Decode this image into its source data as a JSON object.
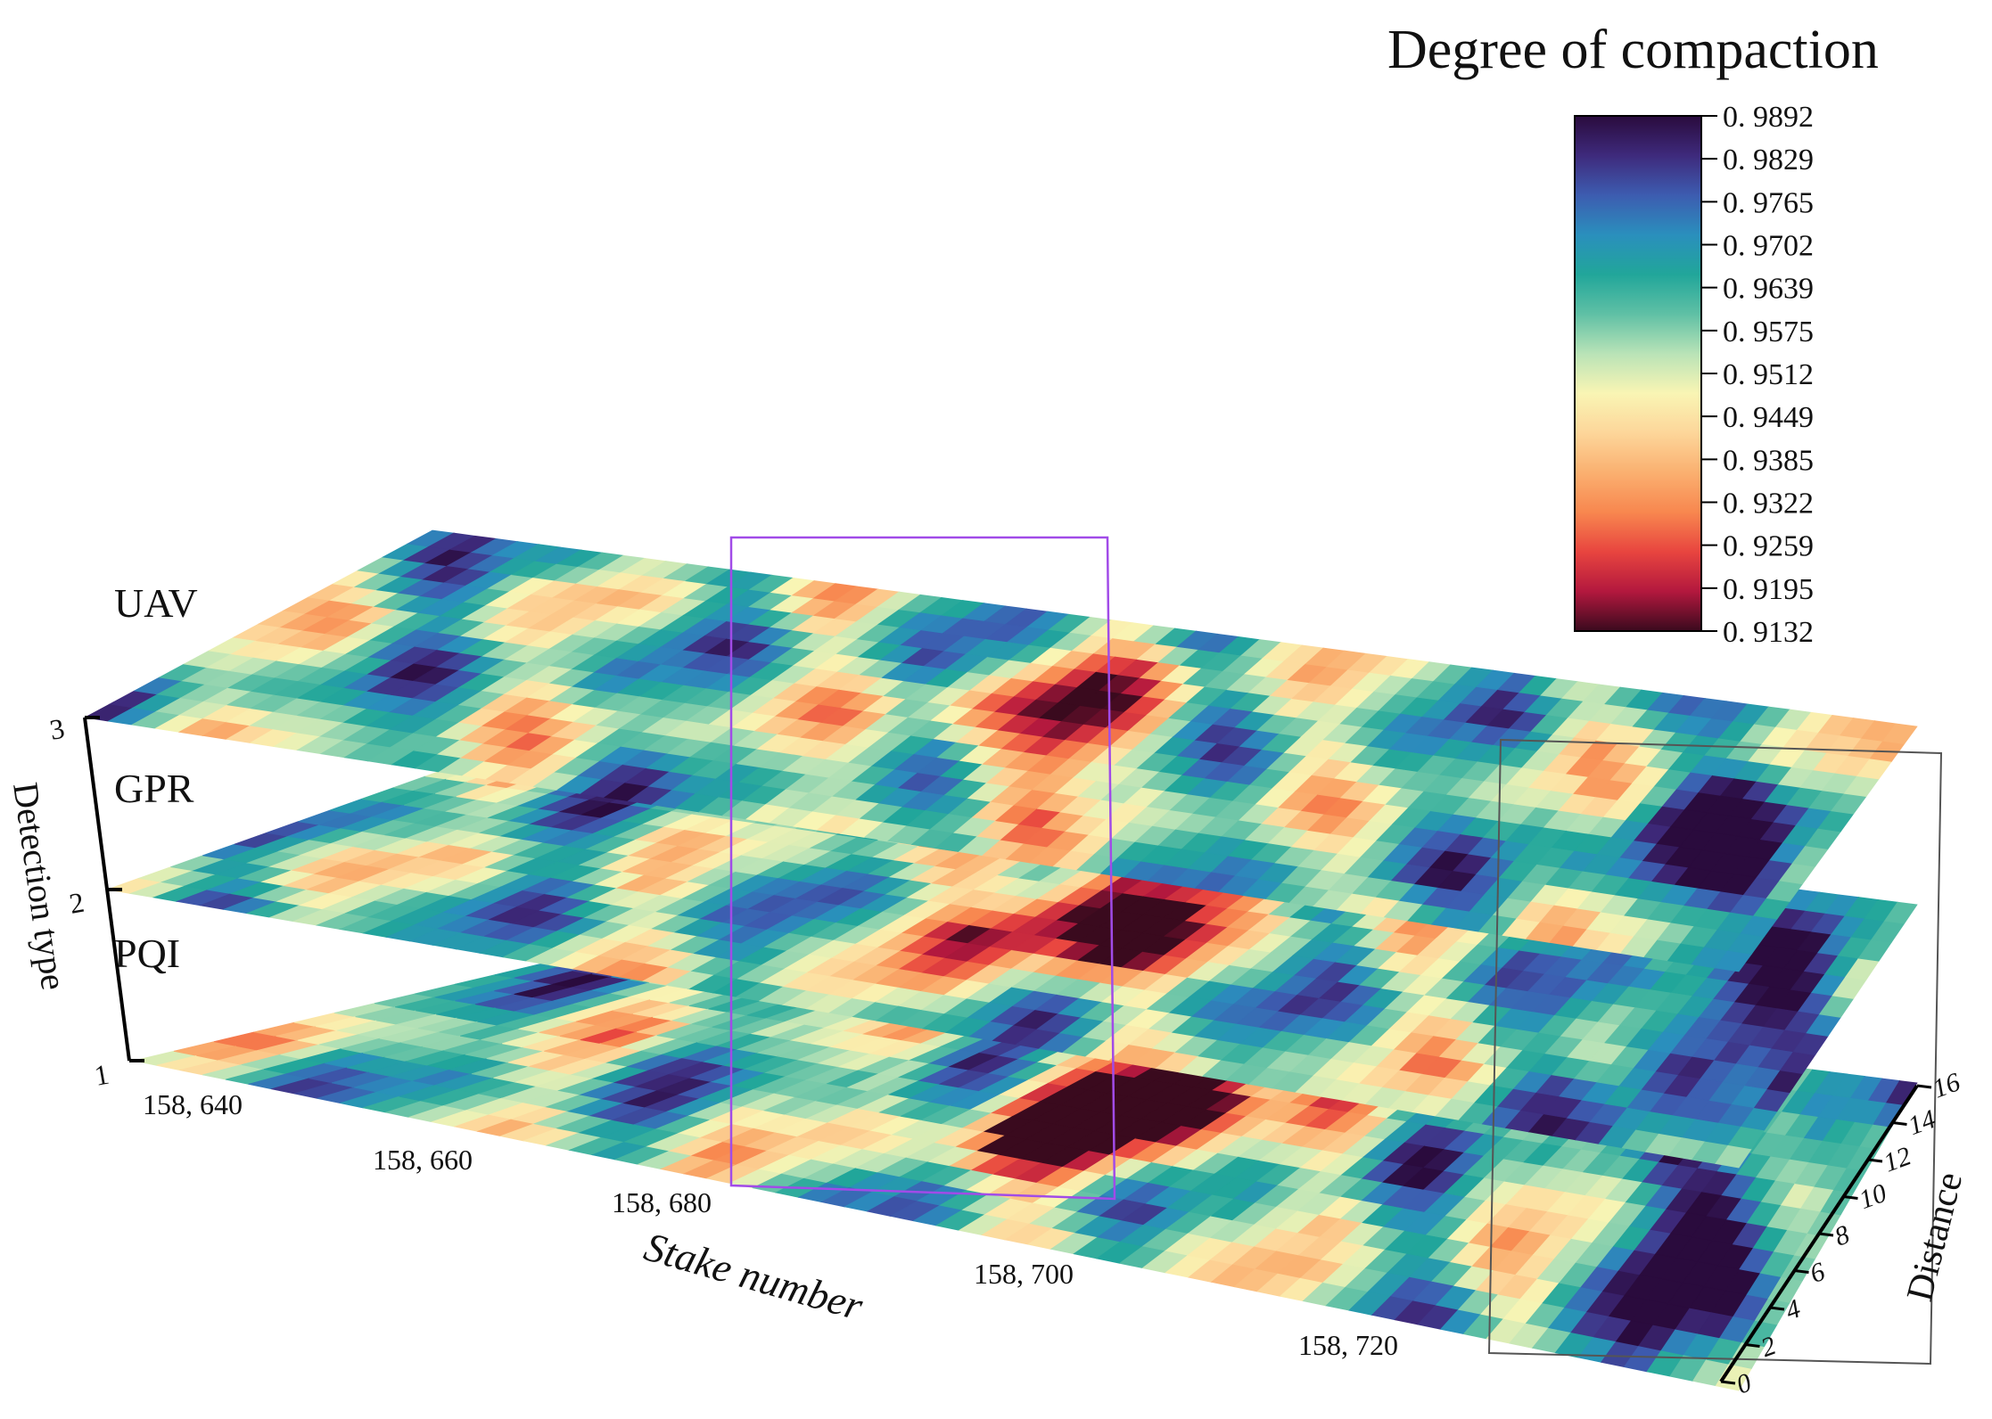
{
  "chart_data": {
    "type": "heatmap",
    "subtype": "stacked-3d-contour-layers",
    "colorbar": {
      "title": "Degree of compaction",
      "ticks": [
        "0. 9892",
        "0. 9829",
        "0. 9765",
        "0. 9702",
        "0. 9639",
        "0. 9575",
        "0. 9512",
        "0. 9449",
        "0. 9385",
        "0. 9322",
        "0. 9259",
        "0. 9195",
        "0. 9132"
      ],
      "range": [
        0.9132,
        0.9892
      ],
      "colors": [
        "#2a0b3d",
        "#3e2a7c",
        "#3d5cb0",
        "#2a8fbd",
        "#21a69a",
        "#5fc0a5",
        "#b9e3b7",
        "#f9f5b4",
        "#fdd69a",
        "#fab070",
        "#f8874f",
        "#e8453f",
        "#b3183e",
        "#3a0a1e"
      ]
    },
    "zaxis": {
      "label": "Detection type",
      "ticks": [
        "1",
        "2",
        "3"
      ],
      "layers": [
        {
          "name": "PQI",
          "level": 1
        },
        {
          "name": "GPR",
          "level": 2
        },
        {
          "name": "UAV",
          "level": 3
        }
      ]
    },
    "xaxis": {
      "label": "Stake number",
      "ticks": [
        "158, 640",
        "158, 660",
        "158, 680",
        "158, 700",
        "158, 720"
      ],
      "range": [
        158630,
        158740
      ]
    },
    "yaxis": {
      "label": "Distance",
      "ticks": [
        "0",
        "2",
        "4",
        "6",
        "8",
        "10",
        "12",
        "14",
        "16"
      ],
      "range": [
        0,
        16
      ]
    },
    "highlights": [
      {
        "name": "low-compaction-region",
        "stake_range": [
          158680,
          158700
        ],
        "color": "#a14be8"
      },
      {
        "name": "high-compaction-region",
        "stake_range": [
          158725,
          158740
        ],
        "color": "#555555"
      }
    ],
    "grid": false,
    "legend": "top-right colorbar"
  }
}
